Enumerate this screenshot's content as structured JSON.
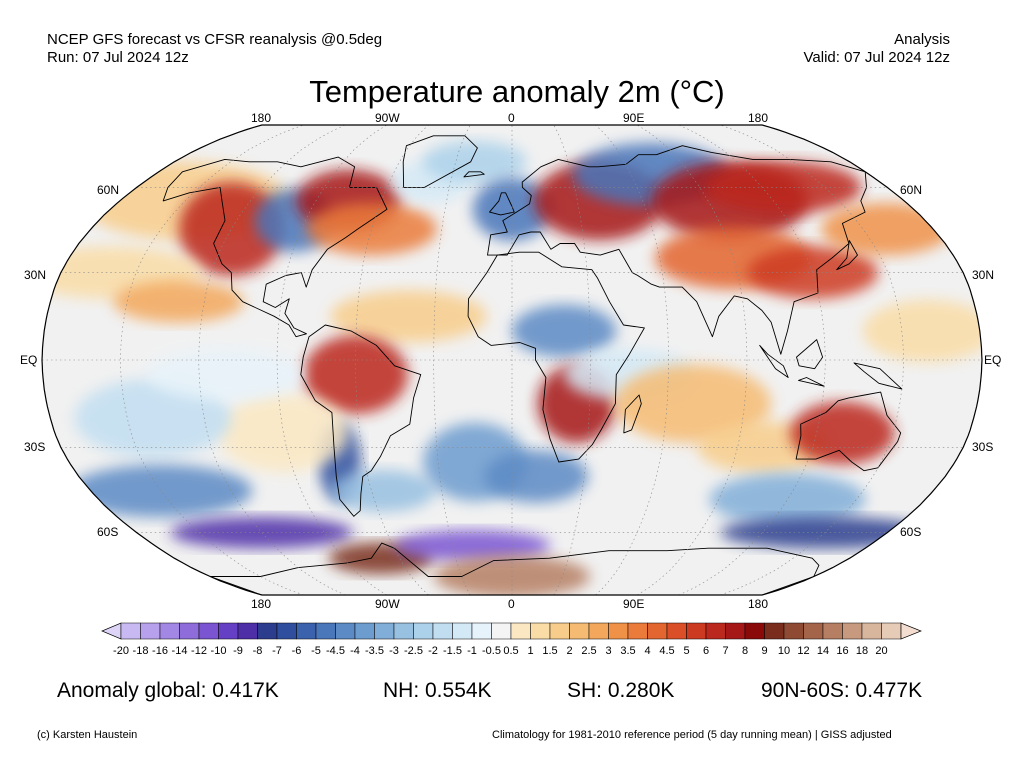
{
  "header": {
    "line1_left": "NCEP GFS forecast vs CFSR reanalysis @0.5deg",
    "line2_left": "Run: 07 Jul 2024 12z",
    "line1_right": "Analysis",
    "line2_right": "Valid: 07 Jul 2024 12z"
  },
  "title": "Temperature anomaly 2m (°C)",
  "map": {
    "projection": "Robinson",
    "lon_labels": [
      "180",
      "90W",
      "0",
      "90E",
      "180"
    ],
    "lat_labels": [
      "60N",
      "30N",
      "EQ",
      "30S",
      "60S"
    ],
    "coastline_color": "#000000",
    "gridline_style": "dotted grey"
  },
  "colorbar": {
    "tick_labels": [
      "-20",
      "-18",
      "-16",
      "-14",
      "-12",
      "-10",
      "-9",
      "-8",
      "-7",
      "-6",
      "-5",
      "-4.5",
      "-4",
      "-3.5",
      "-3",
      "-2.5",
      "-2",
      "-1.5",
      "-1",
      "-0.5",
      "0.5",
      "1",
      "1.5",
      "2",
      "2.5",
      "3",
      "3.5",
      "4",
      "4.5",
      "5",
      "6",
      "7",
      "8",
      "9",
      "10",
      "12",
      "14",
      "16",
      "18",
      "20"
    ],
    "colors": [
      "#c9b9f2",
      "#b7a1ec",
      "#a287e4",
      "#8e6ddb",
      "#7a54d1",
      "#6640c4",
      "#4e2fa8",
      "#2c3d8e",
      "#2f4f9e",
      "#3a62ad",
      "#4a76ba",
      "#5b8ac5",
      "#6d9ccf",
      "#81aed8",
      "#97c0e1",
      "#acd1ea",
      "#c1def1",
      "#d4e9f6",
      "#e7f3fa",
      "#f4f4f4",
      "#fbe8c3",
      "#f9dca6",
      "#f8cd8b",
      "#f6bb72",
      "#f3a75c",
      "#ef9248",
      "#ea7b3a",
      "#e3652f",
      "#da4f27",
      "#cd3a22",
      "#bb281d",
      "#a61818",
      "#8a0a0a",
      "#7a2d1d",
      "#8f4a33",
      "#a3644a",
      "#b67f64",
      "#c79a80",
      "#d8b59d",
      "#e6cbb7"
    ],
    "under_color": "#ddd4f7",
    "over_color": "#f2ddd0"
  },
  "stats": {
    "global": "Anomaly global: 0.417K",
    "nh": "NH: 0.554K",
    "sh": "SH: 0.280K",
    "band": "90N-60S: 0.477K"
  },
  "footer": {
    "left": "(c) Karsten Haustein",
    "right": "Climatology for 1981-2010 reference period (5 day running mean) | GISS adjusted"
  }
}
